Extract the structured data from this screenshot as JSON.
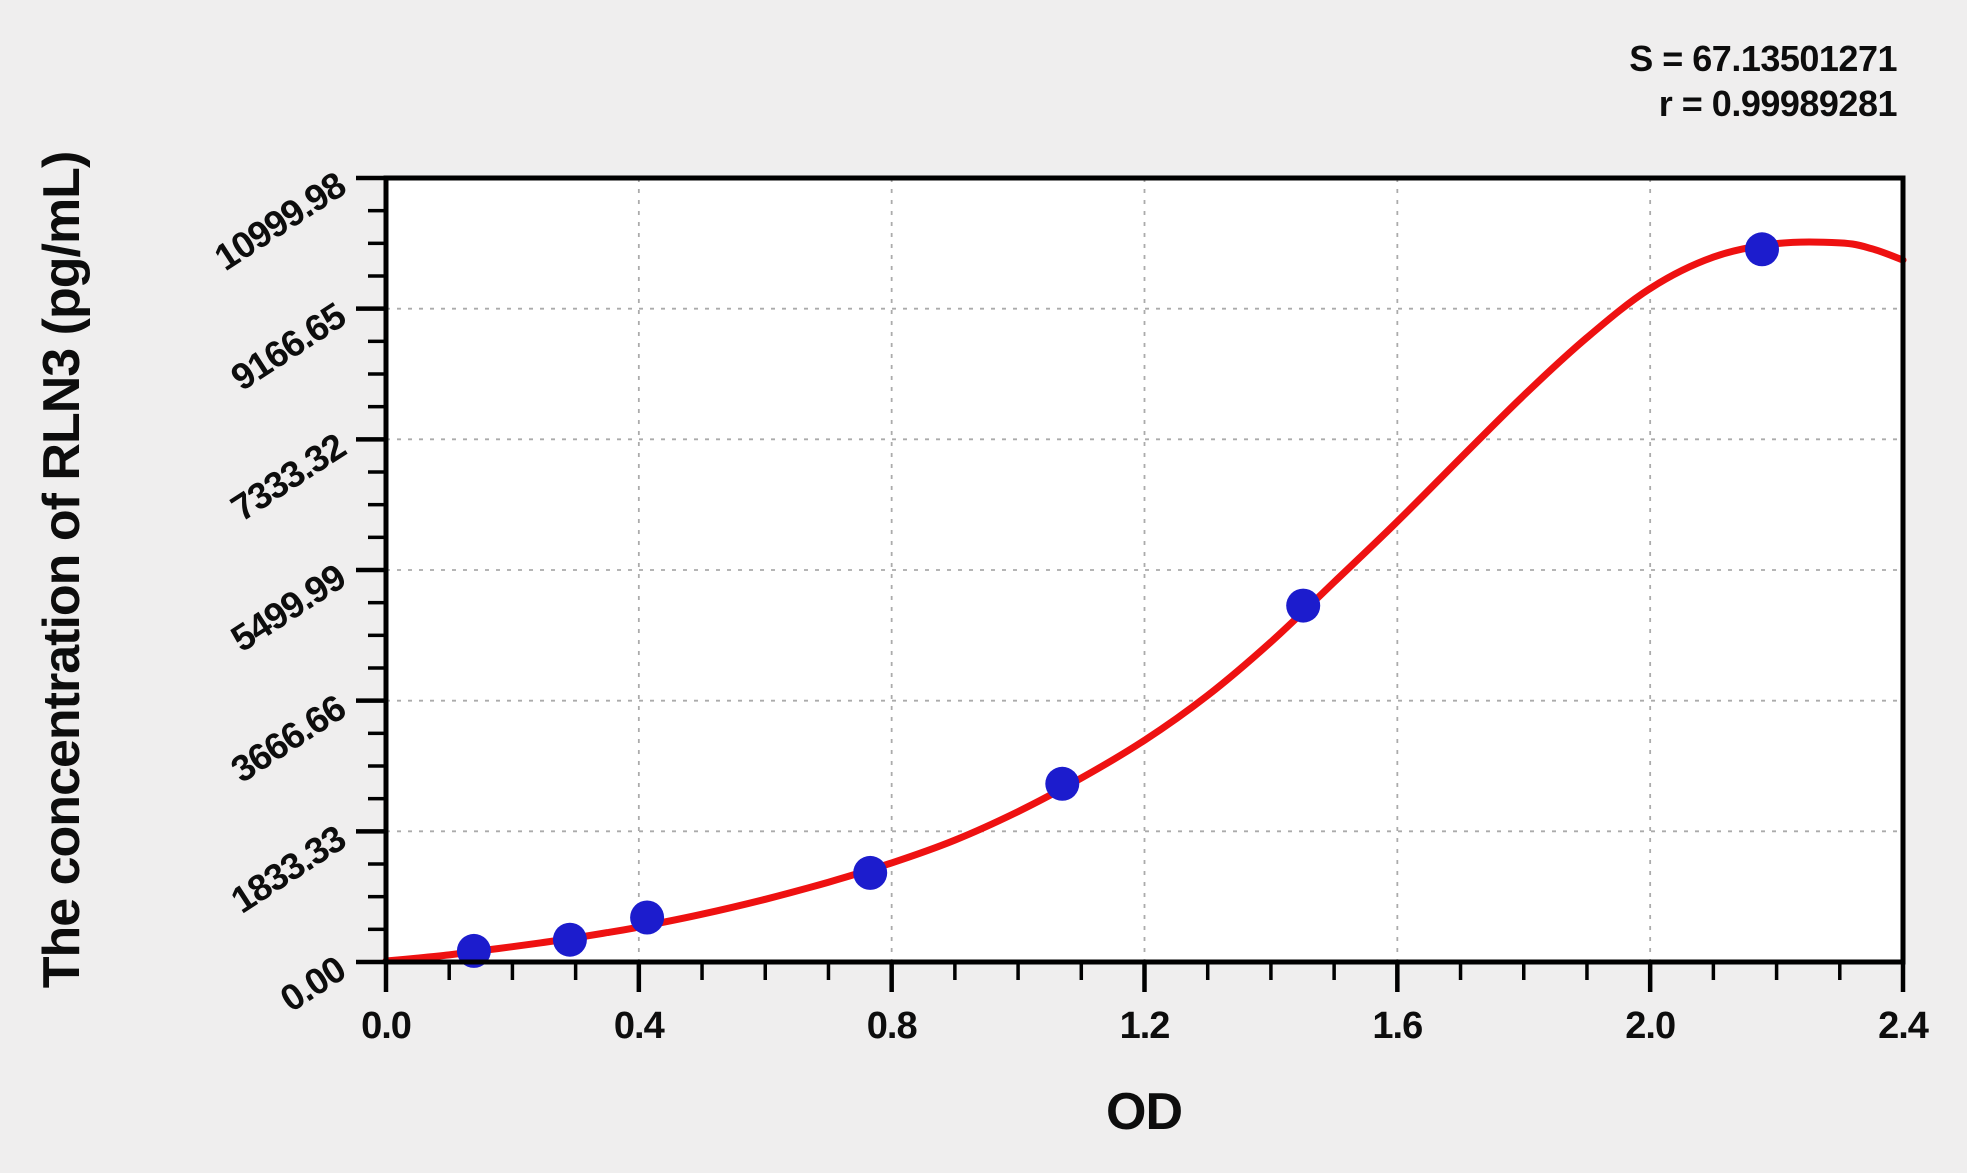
{
  "colors": {
    "background": "#efeeee",
    "plot_background": "#ffffff",
    "axis": "#000000",
    "grid": "#ababab",
    "curve": "#ee1111",
    "marker": "#1c1ccd",
    "text": "#0d0d0d"
  },
  "chart_data": {
    "type": "scatter",
    "title": "",
    "xlabel": "OD",
    "ylabel": "The concentration of RLN3 (pg/mL)",
    "annotations": [
      "S = 67.13501271",
      "r = 0.99989281"
    ],
    "stats": {
      "S": 67.13501271,
      "r": 0.99989281
    },
    "xlim": [
      0,
      2.4
    ],
    "ylim": [
      0,
      10999.98
    ],
    "x_ticks": {
      "values": [
        0,
        0.4,
        0.8,
        1.2,
        1.6,
        2.0,
        2.4
      ],
      "labels": [
        "0.0",
        "0.4",
        "0.8",
        "1.2",
        "1.6",
        "2.0",
        "2.4"
      ],
      "minor_step": 0.1
    },
    "y_ticks": {
      "values": [
        0,
        1833.33,
        3666.66,
        5499.99,
        7333.32,
        9166.65,
        10999.98
      ],
      "labels": [
        "0.00",
        "1833.33",
        "3666.66",
        "5499.99",
        "7333.32",
        "9166.65",
        "10999.98"
      ],
      "minor_step": 458.3325
    },
    "grid": {
      "show": "major",
      "style": "dashed"
    },
    "legend": {
      "show": false
    },
    "series": [
      {
        "name": "standard-points",
        "type": "scatter",
        "color": "#1c1ccd",
        "marker_radius": 17,
        "points": [
          [
            0.139,
            156.25
          ],
          [
            0.291,
            312.5
          ],
          [
            0.413,
            625
          ],
          [
            0.766,
            1250
          ],
          [
            1.07,
            2500
          ],
          [
            1.451,
            5000
          ],
          [
            2.177,
            10000
          ]
        ]
      },
      {
        "name": "fitted-curve",
        "type": "line",
        "color": "#ee1111",
        "line_width": 7,
        "points": [
          [
            0,
            15
          ],
          [
            0.05,
            55
          ],
          [
            0.1,
            100
          ],
          [
            0.15,
            158
          ],
          [
            0.2,
            215
          ],
          [
            0.25,
            275
          ],
          [
            0.3,
            340
          ],
          [
            0.35,
            412
          ],
          [
            0.4,
            490
          ],
          [
            0.5,
            670
          ],
          [
            0.6,
            880
          ],
          [
            0.7,
            1120
          ],
          [
            0.8,
            1390
          ],
          [
            0.9,
            1710
          ],
          [
            1,
            2110
          ],
          [
            1.1,
            2580
          ],
          [
            1.2,
            3110
          ],
          [
            1.3,
            3740
          ],
          [
            1.4,
            4490
          ],
          [
            1.5,
            5330
          ],
          [
            1.6,
            6180
          ],
          [
            1.7,
            7070
          ],
          [
            1.8,
            7950
          ],
          [
            1.9,
            8760
          ],
          [
            2,
            9450
          ],
          [
            2.1,
            9890
          ],
          [
            2.2,
            10080
          ],
          [
            2.3,
            10090
          ],
          [
            2.35,
            10010
          ],
          [
            2.4,
            9850
          ]
        ]
      }
    ]
  }
}
